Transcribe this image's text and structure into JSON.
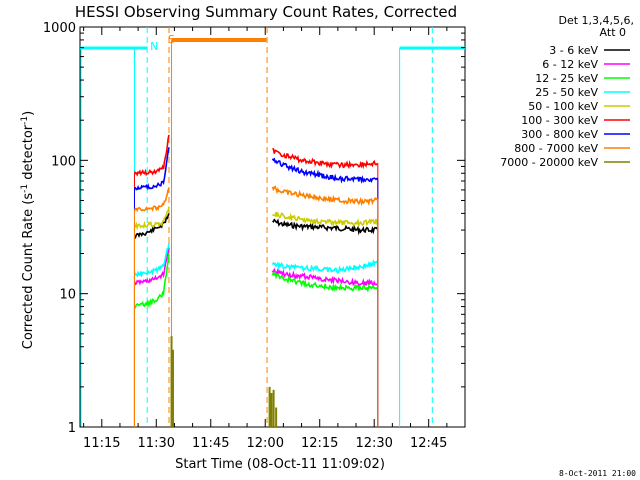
{
  "chart_data": {
    "type": "line",
    "title": "HESSI Observing Summary Count Rates, Corrected",
    "xlabel": "Start Time (08-Oct-11 11:09:02)",
    "ylabel": "Corrected Count Rate (s⁻¹ detector⁻¹)",
    "ylabel_parts": {
      "main": "Corrected Count Rate (s",
      "exp1": "-1",
      "mid": " detector",
      "exp2": "-1",
      "end": ")"
    },
    "x_tick_labels": [
      "11:15",
      "11:30",
      "11:45",
      "12:00",
      "12:15",
      "12:30",
      "12:45"
    ],
    "x_ticks_min": [
      15,
      30,
      45,
      60,
      75,
      90,
      105
    ],
    "xlim_min": [
      9,
      115
    ],
    "y_scale": "log",
    "ylim": [
      1,
      1000
    ],
    "y_tick_labels": [
      "1",
      "10",
      "100",
      "1000"
    ],
    "y_ticks": [
      1,
      10,
      100,
      1000
    ],
    "legend": {
      "header": [
        "Det 1,3,4,5,6,",
        "Att 0"
      ],
      "placement": "top-right-outside",
      "entries": [
        "3 - 6 keV",
        "6 - 12 keV",
        "12 - 25 keV",
        "25 - 50 keV",
        "50 - 100 keV",
        "100 - 300 keV",
        "300 - 800 keV",
        "800 - 7000 keV",
        "7000 - 20000 keV"
      ]
    },
    "series": [
      {
        "name": "3 - 6 keV",
        "color": "#000000",
        "seg1": [
          [
            24,
            27
          ],
          [
            28,
            29
          ],
          [
            30,
            31
          ],
          [
            32,
            33
          ],
          [
            33.5,
            40
          ]
        ],
        "seg2": [
          [
            62,
            35
          ],
          [
            65,
            33
          ],
          [
            70,
            32
          ],
          [
            80,
            31
          ],
          [
            86,
            30
          ],
          [
            91,
            30
          ]
        ]
      },
      {
        "name": "6 - 12 keV",
        "color": "#ff00ff",
        "seg1": [
          [
            24,
            12
          ],
          [
            28,
            12.5
          ],
          [
            30,
            13
          ],
          [
            32,
            14
          ],
          [
            33.5,
            22
          ]
        ],
        "seg2": [
          [
            62,
            15
          ],
          [
            65,
            14
          ],
          [
            70,
            13.5
          ],
          [
            80,
            12.5
          ],
          [
            86,
            12
          ],
          [
            91,
            12
          ]
        ]
      },
      {
        "name": "12 - 25 keV",
        "color": "#00ff00",
        "seg1": [
          [
            24,
            8
          ],
          [
            28,
            8.5
          ],
          [
            30,
            9
          ],
          [
            32,
            10
          ],
          [
            33.5,
            20
          ]
        ],
        "seg2": [
          [
            62,
            14
          ],
          [
            65,
            13
          ],
          [
            70,
            12
          ],
          [
            80,
            11
          ],
          [
            86,
            11
          ],
          [
            91,
            11
          ]
        ]
      },
      {
        "name": "25 - 50 keV",
        "color": "#00ffff",
        "seg1": [
          [
            24,
            14
          ],
          [
            28,
            14.5
          ],
          [
            30,
            15
          ],
          [
            32,
            16
          ],
          [
            33.5,
            24
          ]
        ],
        "seg2": [
          [
            62,
            17
          ],
          [
            65,
            16
          ],
          [
            70,
            15.5
          ],
          [
            80,
            15
          ],
          [
            86,
            16
          ],
          [
            91,
            17
          ]
        ]
      },
      {
        "name": "50 - 100 keV",
        "color": "#cccc00",
        "seg1": [
          [
            24,
            32
          ],
          [
            28,
            33
          ],
          [
            30,
            33
          ],
          [
            32,
            34
          ],
          [
            33.5,
            45
          ]
        ],
        "seg2": [
          [
            62,
            40
          ],
          [
            65,
            38
          ],
          [
            70,
            36
          ],
          [
            80,
            34
          ],
          [
            86,
            34
          ],
          [
            91,
            35
          ]
        ]
      },
      {
        "name": "100 - 300 keV",
        "color": "#ff0000",
        "seg1": [
          [
            24,
            80
          ],
          [
            28,
            81
          ],
          [
            30,
            82
          ],
          [
            32,
            88
          ],
          [
            33.5,
            155
          ]
        ],
        "seg2": [
          [
            62,
            118
          ],
          [
            65,
            110
          ],
          [
            70,
            100
          ],
          [
            80,
            92
          ],
          [
            86,
            93
          ],
          [
            91,
            95
          ]
        ]
      },
      {
        "name": "300 - 800 keV",
        "color": "#0000ff",
        "seg1": [
          [
            24,
            62
          ],
          [
            28,
            63
          ],
          [
            30,
            64
          ],
          [
            32,
            68
          ],
          [
            33.5,
            125
          ]
        ],
        "seg2": [
          [
            62,
            100
          ],
          [
            65,
            92
          ],
          [
            70,
            82
          ],
          [
            80,
            73
          ],
          [
            86,
            72
          ],
          [
            91,
            72
          ]
        ]
      },
      {
        "name": "800 - 7000 keV",
        "color": "#ff8000",
        "seg1": [
          [
            24,
            43
          ],
          [
            28,
            43
          ],
          [
            30,
            44
          ],
          [
            32,
            46
          ],
          [
            33.5,
            62
          ]
        ],
        "seg2": [
          [
            62,
            62
          ],
          [
            65,
            58
          ],
          [
            70,
            55
          ],
          [
            80,
            50
          ],
          [
            86,
            49
          ],
          [
            91,
            50
          ]
        ]
      },
      {
        "name": "7000 - 20000 keV",
        "color": "#808000",
        "spikes": [
          [
            34.2,
            4.8
          ],
          [
            34.6,
            3.8
          ],
          [
            61.2,
            2.0
          ],
          [
            61.7,
            1.8
          ],
          [
            62.3,
            1.9
          ],
          [
            63,
            1.4
          ]
        ]
      }
    ],
    "flags": [
      {
        "code": "N",
        "style": "dashed-vertical",
        "color": "#00ffff",
        "x_min": [
          27.5,
          106
        ]
      },
      {
        "code": "S",
        "style": "dashed-vertical",
        "color": "#ff8000",
        "x_min": [
          33.5,
          60.5
        ]
      }
    ],
    "flag_labels": {
      "N": "N",
      "S": "S"
    },
    "footer_timestamp": "8-Oct-2011 21:00"
  }
}
